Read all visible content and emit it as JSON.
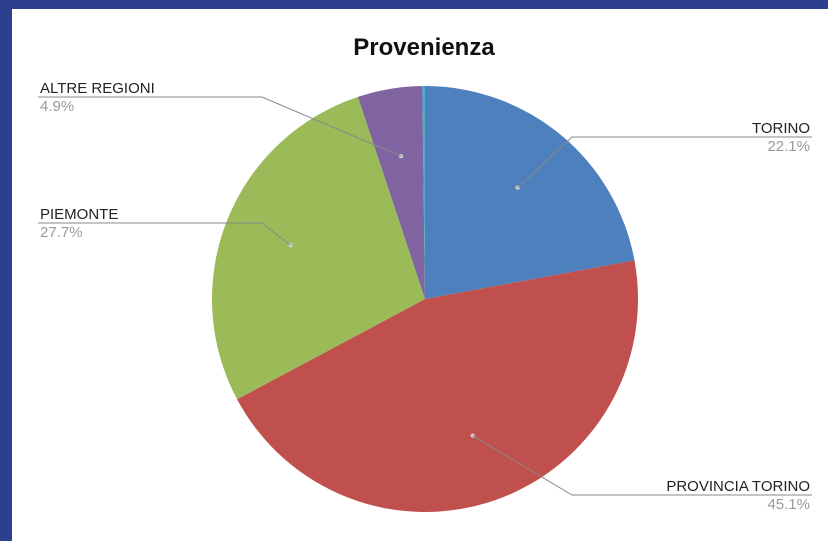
{
  "chart_data": {
    "type": "pie",
    "title": "Provenienza",
    "slices": [
      {
        "label": "TORINO",
        "value": 22.1,
        "pct_label": "22.1%",
        "color": "#4e80be"
      },
      {
        "label": "PROVINCIA TORINO",
        "value": 45.1,
        "pct_label": "45.1%",
        "color": "#c0504d"
      },
      {
        "label": "PIEMONTE",
        "value": 27.7,
        "pct_label": "27.7%",
        "color": "#9bbb59"
      },
      {
        "label": "ALTRE REGIONI",
        "value": 4.9,
        "pct_label": "4.9%",
        "color": "#8064a2"
      },
      {
        "label": "",
        "value": 0.2,
        "pct_label": "",
        "color": "#4bacc6"
      }
    ],
    "start_angle": "12 o'clock",
    "direction": "clockwise",
    "legend": "none (leader-line labels)"
  },
  "colors": {
    "page_background": "#2e3f8f",
    "chart_background": "#ffffff",
    "leader_line": "#888888"
  }
}
